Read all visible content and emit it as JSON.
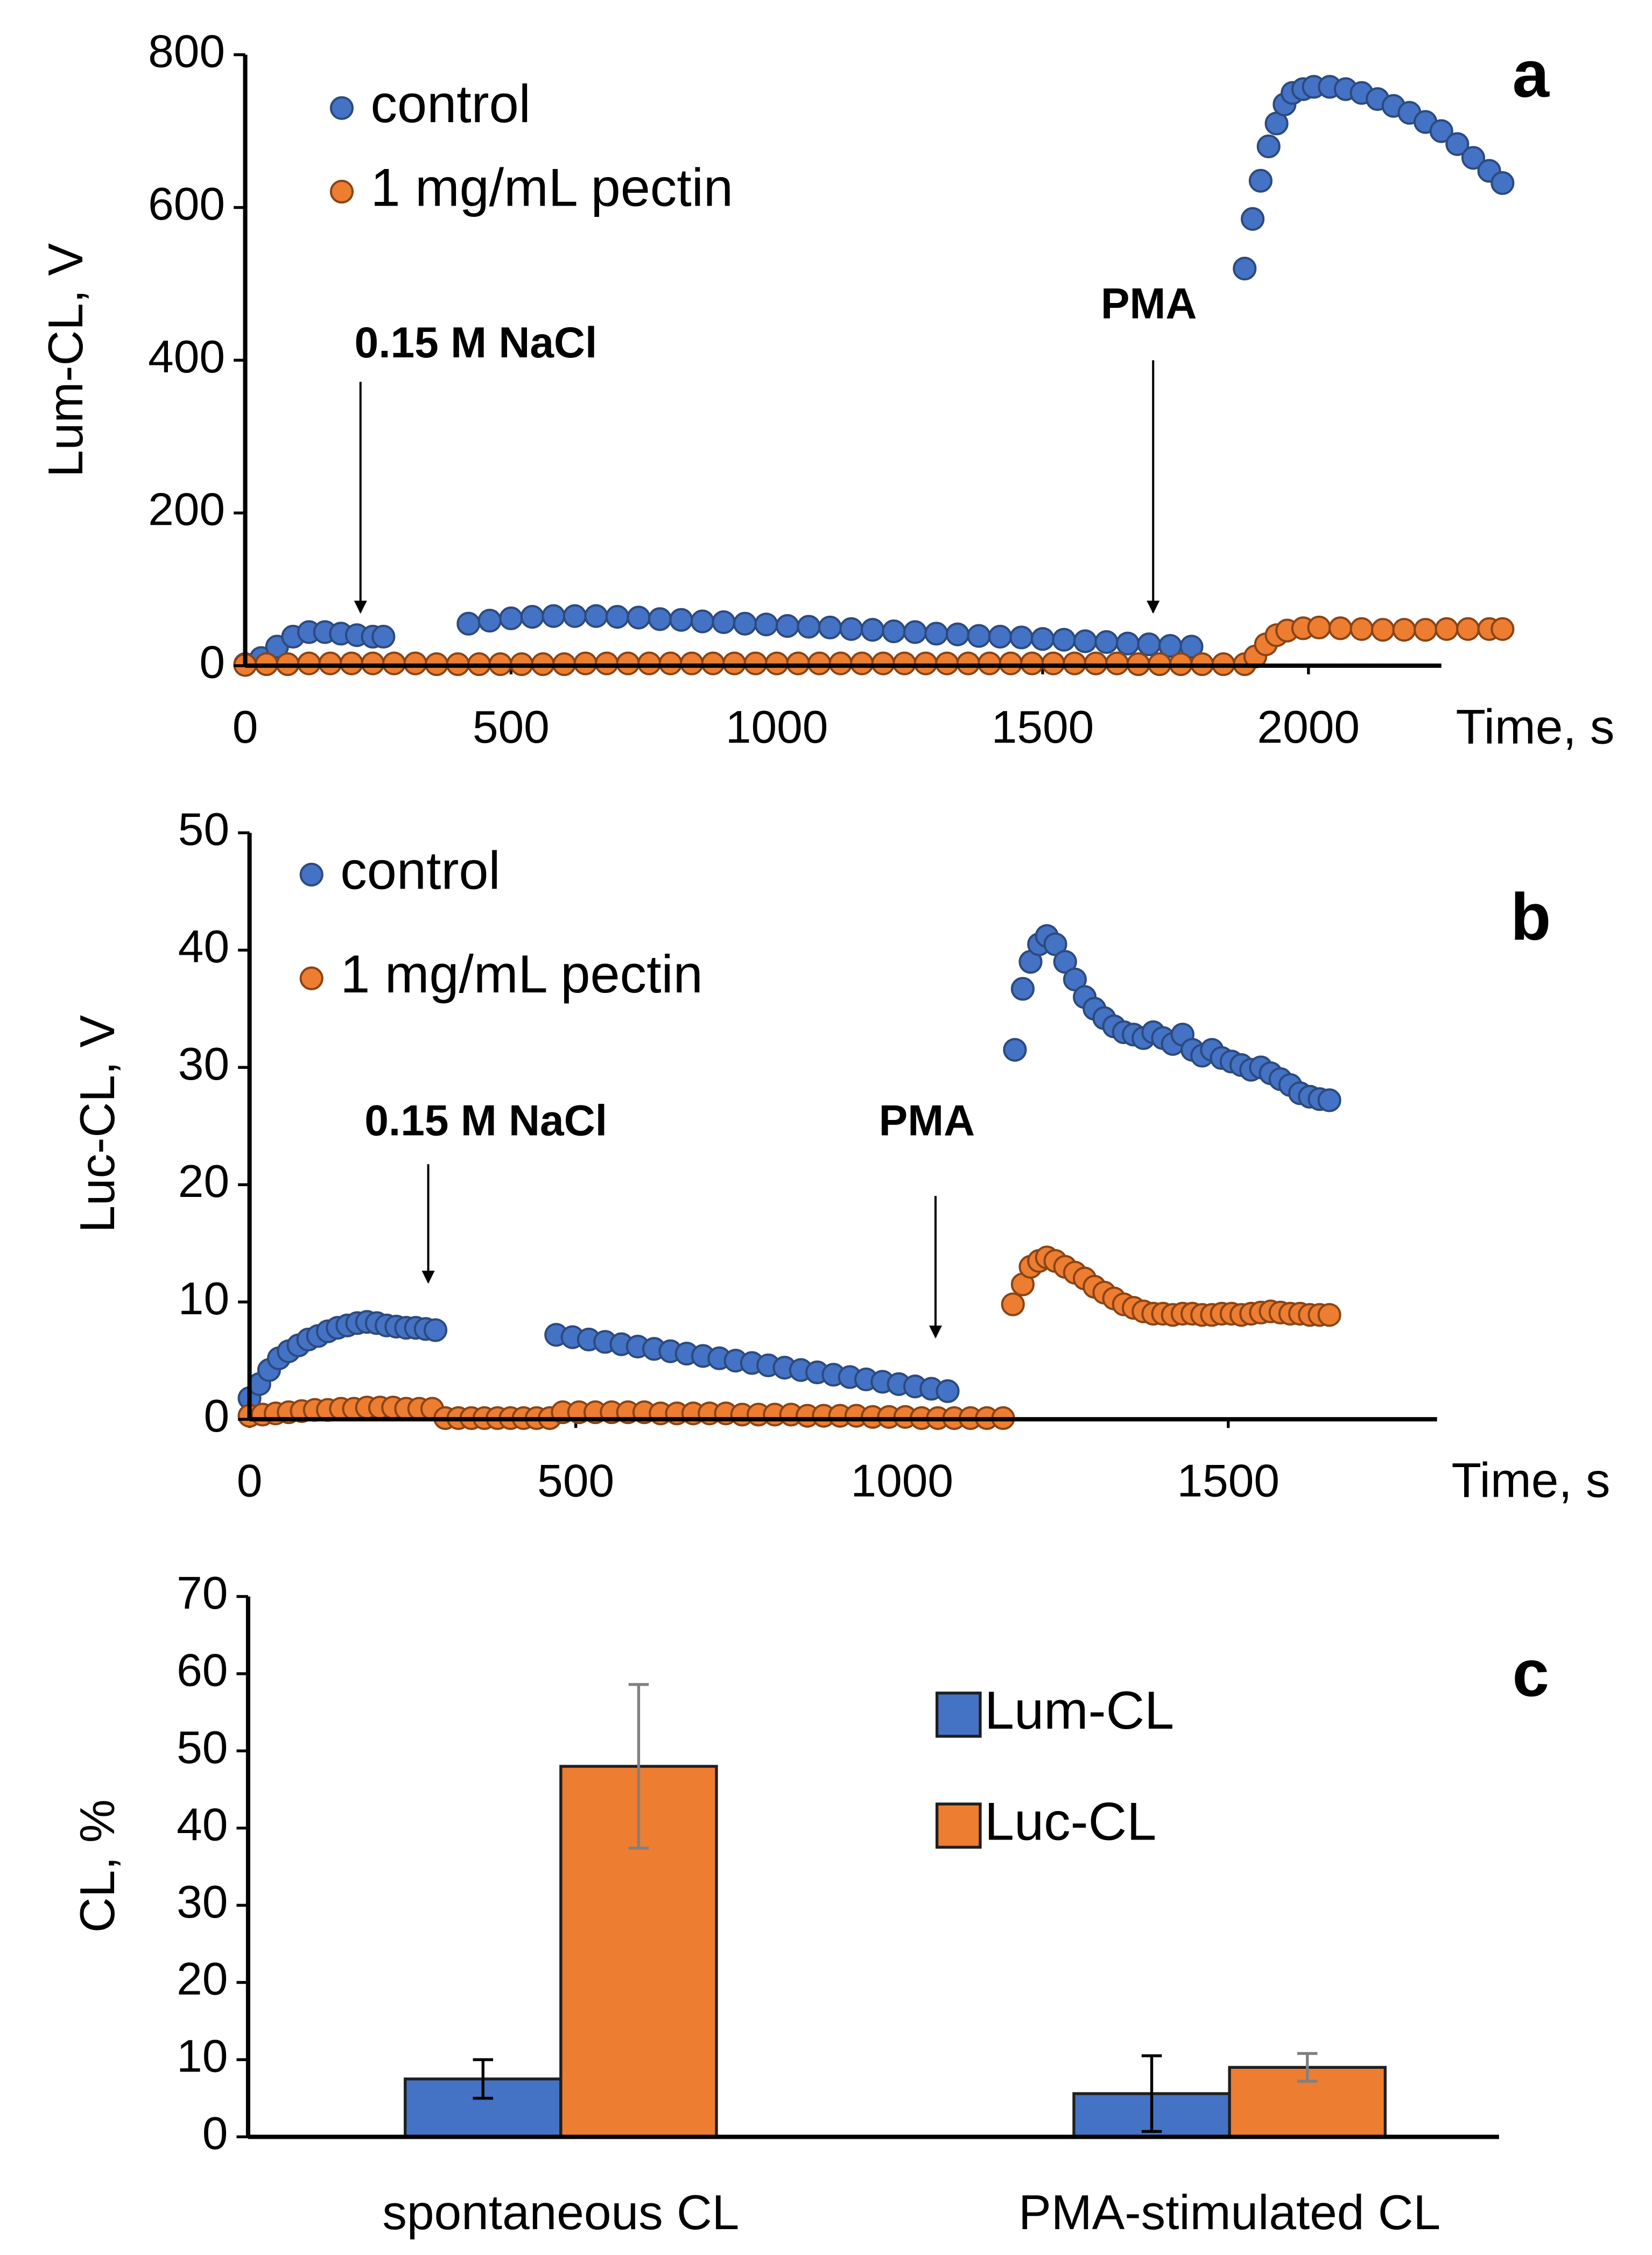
{
  "chart_data": [
    {
      "type": "scatter",
      "panel_label": "a",
      "x_label": "Time, s",
      "y_label": "Lum-CL, V",
      "xlim": [
        0,
        2250
      ],
      "ylim": [
        0,
        800
      ],
      "xticks": [
        0,
        500,
        1000,
        1500,
        2000
      ],
      "yticks": [
        0,
        200,
        400,
        600,
        800
      ],
      "legend": "upper left",
      "annotations": [
        {
          "text": "0.15 M NaCl"
        },
        {
          "text": "PMA"
        }
      ],
      "series": [
        {
          "name": "control",
          "color": "#4472c4",
          "edge": "#2c4a7e",
          "x": [
            0,
            30,
            60,
            90,
            120,
            150,
            180,
            210,
            240,
            260,
            420,
            460,
            500,
            540,
            580,
            620,
            660,
            700,
            740,
            780,
            820,
            860,
            900,
            940,
            980,
            1020,
            1060,
            1100,
            1140,
            1180,
            1220,
            1260,
            1300,
            1340,
            1380,
            1420,
            1460,
            1500,
            1540,
            1580,
            1620,
            1660,
            1700,
            1740,
            1780,
            1880,
            1895,
            1910,
            1925,
            1940,
            1955,
            1970,
            1990,
            2010,
            2040,
            2070,
            2100,
            2130,
            2160,
            2190,
            2220,
            2250,
            2280,
            2310,
            2340,
            2365
          ],
          "values": [
            2,
            10,
            25,
            38,
            44,
            44,
            42,
            40,
            38,
            38,
            55,
            59,
            62,
            64,
            65,
            65,
            65,
            64,
            63,
            61,
            60,
            58,
            57,
            55,
            54,
            52,
            51,
            50,
            48,
            47,
            45,
            44,
            42,
            41,
            39,
            38,
            37,
            35,
            34,
            32,
            31,
            29,
            28,
            26,
            25,
            520,
            585,
            635,
            680,
            710,
            735,
            750,
            755,
            758,
            758,
            755,
            750,
            742,
            733,
            724,
            712,
            700,
            683,
            665,
            648,
            632
          ]
        },
        {
          "name": "1 mg/mL pectin",
          "color": "#ed7d31",
          "edge": "#8a4414",
          "x": [
            0,
            40,
            80,
            120,
            160,
            200,
            240,
            280,
            320,
            360,
            400,
            440,
            480,
            520,
            560,
            600,
            640,
            680,
            720,
            760,
            800,
            840,
            880,
            920,
            960,
            1000,
            1040,
            1080,
            1120,
            1160,
            1200,
            1240,
            1280,
            1320,
            1360,
            1400,
            1440,
            1480,
            1520,
            1560,
            1600,
            1640,
            1680,
            1720,
            1760,
            1800,
            1840,
            1880,
            1900,
            1920,
            1940,
            1960,
            1990,
            2020,
            2060,
            2100,
            2140,
            2180,
            2220,
            2260,
            2300,
            2340,
            2365
          ],
          "values": [
            1,
            2,
            2,
            3,
            3,
            3,
            3,
            3,
            3,
            2,
            2,
            2,
            2,
            2,
            2,
            2,
            3,
            3,
            3,
            3,
            3,
            3,
            3,
            3,
            3,
            3,
            3,
            3,
            3,
            3,
            3,
            3,
            3,
            3,
            3,
            3,
            3,
            3,
            3,
            3,
            3,
            3,
            2,
            2,
            2,
            2,
            2,
            2,
            12,
            28,
            40,
            46,
            49,
            50,
            49,
            48,
            47,
            47,
            47,
            48,
            48,
            48,
            48
          ]
        }
      ]
    },
    {
      "type": "scatter",
      "panel_label": "b",
      "x_label": "Time, s",
      "y_label": "Luc-CL, V",
      "xlim": [
        0,
        1820
      ],
      "ylim": [
        0,
        50
      ],
      "xticks": [
        0,
        500,
        1000,
        1500
      ],
      "yticks": [
        0,
        10,
        20,
        30,
        40,
        50
      ],
      "legend": "upper left",
      "annotations": [
        {
          "text": "0.15 M NaCl"
        },
        {
          "text": "PMA"
        }
      ],
      "series": [
        {
          "name": "control",
          "color": "#4472c4",
          "edge": "#2c4a7e",
          "x": [
            0,
            15,
            30,
            45,
            60,
            75,
            90,
            105,
            120,
            135,
            150,
            165,
            180,
            195,
            210,
            225,
            240,
            255,
            270,
            285,
            470,
            495,
            520,
            545,
            570,
            595,
            620,
            645,
            670,
            695,
            720,
            745,
            770,
            795,
            820,
            845,
            870,
            895,
            920,
            945,
            970,
            995,
            1020,
            1045,
            1070,
            1173,
            1185,
            1197,
            1210,
            1222,
            1235,
            1250,
            1265,
            1280,
            1295,
            1310,
            1325,
            1340,
            1355,
            1370,
            1385,
            1400,
            1415,
            1430,
            1445,
            1460,
            1475,
            1490,
            1505,
            1520,
            1535,
            1550,
            1565,
            1580,
            1595,
            1610,
            1625,
            1640,
            1655
          ],
          "values": [
            1.8,
            3,
            4.2,
            5.2,
            5.8,
            6.3,
            6.8,
            7.1,
            7.5,
            7.8,
            8,
            8.2,
            8.3,
            8.2,
            8,
            7.9,
            7.8,
            7.8,
            7.7,
            7.6,
            7.2,
            7.0,
            6.8,
            6.6,
            6.4,
            6.2,
            6.0,
            5.8,
            5.6,
            5.4,
            5.2,
            5.0,
            4.8,
            4.6,
            4.4,
            4.2,
            4.0,
            3.8,
            3.6,
            3.4,
            3.2,
            3.0,
            2.8,
            2.6,
            2.4,
            31.5,
            36.7,
            39,
            40.5,
            41.2,
            40.5,
            39,
            37.5,
            36,
            35,
            34.2,
            33.5,
            33,
            32.8,
            32.5,
            33,
            32.5,
            32,
            32.8,
            31.5,
            31,
            31.5,
            30.8,
            30.5,
            30.2,
            29.8,
            30,
            29.5,
            29,
            28.5,
            27.8,
            27.5,
            27.3,
            27.2
          ]
        },
        {
          "name": "1 mg/mL pectin",
          "color": "#ed7d31",
          "edge": "#8a4414",
          "x": [
            0,
            20,
            40,
            60,
            80,
            100,
            120,
            140,
            160,
            180,
            200,
            220,
            240,
            260,
            280,
            300,
            320,
            340,
            360,
            380,
            400,
            420,
            440,
            460,
            480,
            505,
            530,
            555,
            580,
            605,
            630,
            655,
            680,
            705,
            730,
            755,
            780,
            805,
            830,
            855,
            880,
            905,
            930,
            955,
            980,
            1005,
            1030,
            1055,
            1080,
            1105,
            1130,
            1155,
            1170,
            1185,
            1197,
            1210,
            1222,
            1235,
            1250,
            1265,
            1280,
            1295,
            1310,
            1325,
            1340,
            1355,
            1370,
            1385,
            1400,
            1415,
            1430,
            1445,
            1460,
            1475,
            1490,
            1505,
            1520,
            1535,
            1550,
            1565,
            1580,
            1595,
            1610,
            1625,
            1640,
            1655
          ],
          "values": [
            0.3,
            0.4,
            0.5,
            0.6,
            0.7,
            0.8,
            0.8,
            0.9,
            0.9,
            1,
            1,
            1,
            0.9,
            0.9,
            0.9,
            0.1,
            0.1,
            0.1,
            0.1,
            0.1,
            0.1,
            0.1,
            0.1,
            0.1,
            0.6,
            0.6,
            0.6,
            0.6,
            0.6,
            0.6,
            0.5,
            0.5,
            0.5,
            0.5,
            0.5,
            0.4,
            0.4,
            0.4,
            0.4,
            0.3,
            0.3,
            0.3,
            0.3,
            0.2,
            0.2,
            0.2,
            0.1,
            0.1,
            0.1,
            0.1,
            0.1,
            0.1,
            9.8,
            11.5,
            13,
            13.5,
            13.8,
            13.5,
            13,
            12.5,
            12,
            11.3,
            10.8,
            10.3,
            9.8,
            9.5,
            9.2,
            9,
            9,
            8.9,
            9,
            9,
            8.9,
            8.9,
            9,
            9,
            8.9,
            9,
            9.1,
            9.2,
            9.1,
            9,
            9,
            8.9,
            8.9,
            8.9
          ]
        }
      ]
    },
    {
      "type": "bar",
      "panel_label": "c",
      "y_label": "CL, %",
      "ylim": [
        0,
        70
      ],
      "yticks": [
        0,
        10,
        20,
        30,
        40,
        50,
        60,
        70
      ],
      "legend": "upper right",
      "categories": [
        "spontaneous CL",
        "PMA-stimulated CL"
      ],
      "series": [
        {
          "name": "Lum-CL",
          "color": "#4472c4",
          "edge": "#1f1f1f",
          "error_color": "#000000",
          "values": [
            7.5,
            5.6
          ],
          "errors": [
            2.5,
            4.9
          ]
        },
        {
          "name": "Luc-CL",
          "color": "#ed7d31",
          "edge": "#1f1f1f",
          "error_color": "#808080",
          "values": [
            48,
            9
          ],
          "errors": [
            10.6,
            1.8
          ]
        }
      ]
    }
  ]
}
